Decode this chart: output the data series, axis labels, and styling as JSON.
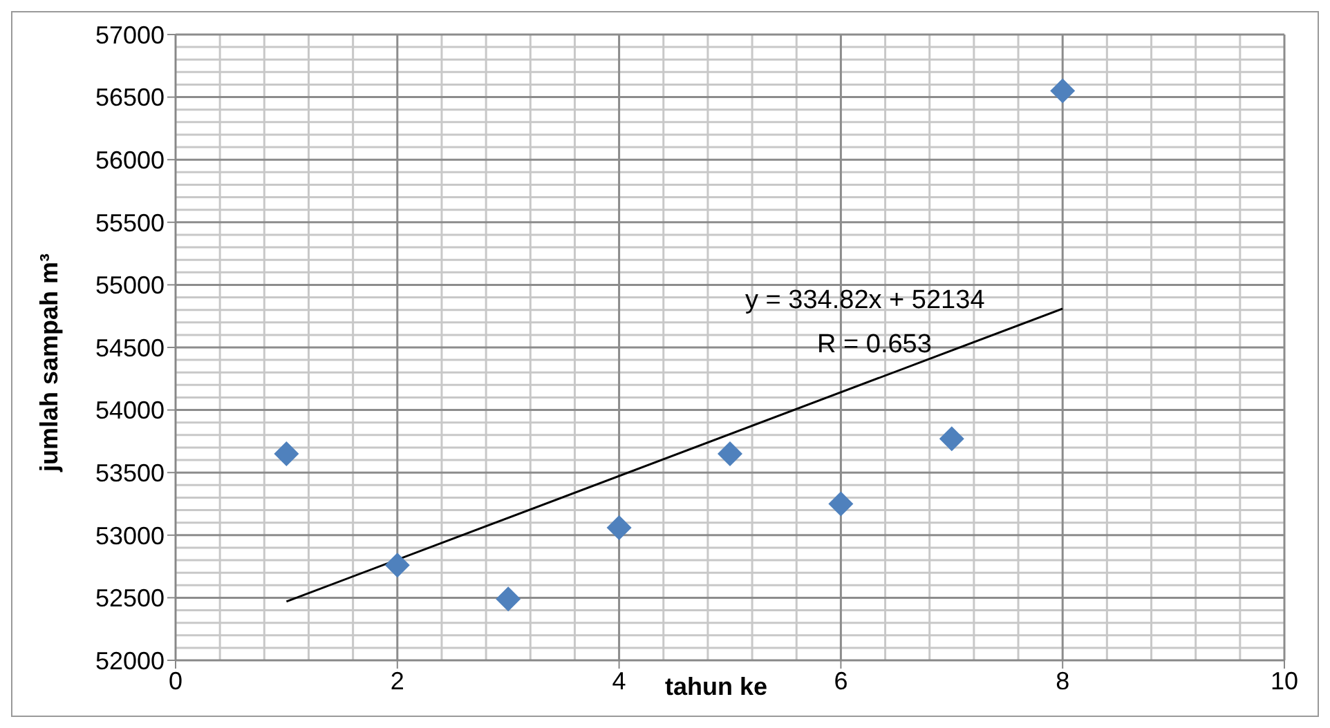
{
  "chart_data": {
    "type": "scatter",
    "xlabel": "tahun ke",
    "ylabel": "jumlah sampah m³",
    "xlim": [
      0,
      10
    ],
    "xticks": [
      0,
      2,
      4,
      6,
      8,
      10
    ],
    "ylim": [
      52000,
      57000
    ],
    "yticks": [
      52000,
      52500,
      53000,
      53500,
      54000,
      54500,
      55000,
      55500,
      56000,
      56500,
      57000
    ],
    "grid": true,
    "legend": false,
    "series": [
      {
        "color": "#4f81bd",
        "marker": "diamond",
        "x": [
          1,
          2,
          3,
          4,
          5,
          6,
          7,
          8
        ],
        "values": [
          53650,
          52760,
          52490,
          53060,
          53650,
          53250,
          53770,
          56550
        ]
      },
      {
        "type": "line",
        "color": "#000000",
        "marker": "none",
        "x": [
          1,
          8
        ],
        "values": [
          52470,
          54810
        ]
      }
    ],
    "annotations": [
      "y = 334.82x + 52134",
      "R = 0.653"
    ]
  }
}
